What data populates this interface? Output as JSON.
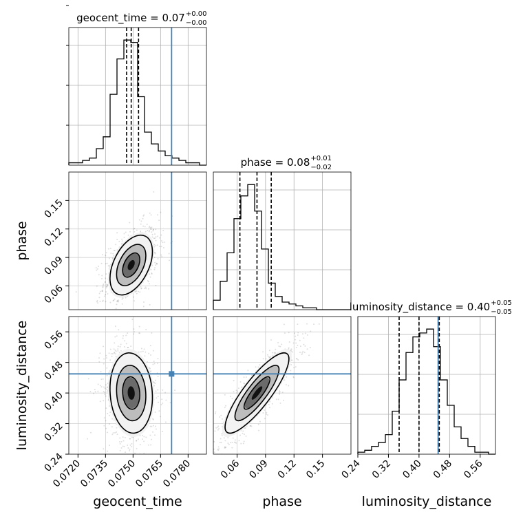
{
  "chart_data": {
    "type": "corner",
    "params": [
      {
        "name": "geocent_time",
        "title": "geocent_time = 0.07",
        "sup": "+0.00",
        "sub": "−0.00",
        "range": [
          0.0715,
          0.079
        ],
        "ticks": [
          "0.0720",
          "0.0735",
          "0.0750",
          "0.0765",
          "0.0780"
        ],
        "tick_values": [
          0.072,
          0.0735,
          0.075,
          0.0765,
          0.078
        ],
        "quantiles": [
          0.07465,
          0.0749,
          0.0753
        ],
        "truth": 0.0771,
        "hist": [
          1,
          1,
          2,
          3,
          7,
          12,
          30,
          45,
          53,
          52,
          29,
          14,
          9,
          6,
          4,
          3,
          2,
          1,
          1,
          0
        ]
      },
      {
        "name": "phase",
        "title": "phase = 0.08",
        "sup": "+0.01",
        "sub": "−0.02",
        "range": [
          0.035,
          0.18
        ],
        "ticks": [
          "0.06",
          "0.09",
          "0.12",
          "0.15"
        ],
        "tick_values": [
          0.06,
          0.09,
          0.12,
          0.15
        ],
        "quantiles": [
          0.063,
          0.081,
          0.096
        ],
        "truth": null,
        "hist": [
          5,
          15,
          30,
          48,
          60,
          66,
          52,
          32,
          14,
          7,
          4,
          3,
          2,
          1,
          1,
          0,
          0,
          0,
          0,
          0
        ]
      },
      {
        "name": "luminosity_distance",
        "title": "luminosity_distance = 0.40",
        "sup": "+0.05",
        "sub": "−0.05",
        "range": [
          0.24,
          0.6
        ],
        "ticks": [
          "0.24",
          "0.32",
          "0.40",
          "0.48",
          "0.56"
        ],
        "tick_values": [
          0.24,
          0.32,
          0.4,
          0.48,
          0.56
        ],
        "quantiles": [
          0.348,
          0.4,
          0.453
        ],
        "truth": 0.45,
        "hist": [
          1,
          2,
          4,
          6,
          10,
          22,
          38,
          52,
          60,
          62,
          64,
          55,
          38,
          25,
          14,
          8,
          4,
          1,
          1,
          0
        ]
      }
    ],
    "pairs": [
      {
        "row": 1,
        "col": 0,
        "center": [
          0.0749,
          0.082
        ],
        "spread": [
          0.00055,
          0.015
        ],
        "corr": 0.45
      },
      {
        "row": 2,
        "col": 0,
        "center": [
          0.0749,
          0.4
        ],
        "spread": [
          0.00055,
          0.05
        ],
        "corr": -0.1
      },
      {
        "row": 2,
        "col": 1,
        "center": [
          0.081,
          0.4
        ],
        "spread": [
          0.016,
          0.05
        ],
        "corr": 0.85
      }
    ],
    "truth_color": "#4682b4",
    "line_color": "#000000",
    "grid": true
  }
}
